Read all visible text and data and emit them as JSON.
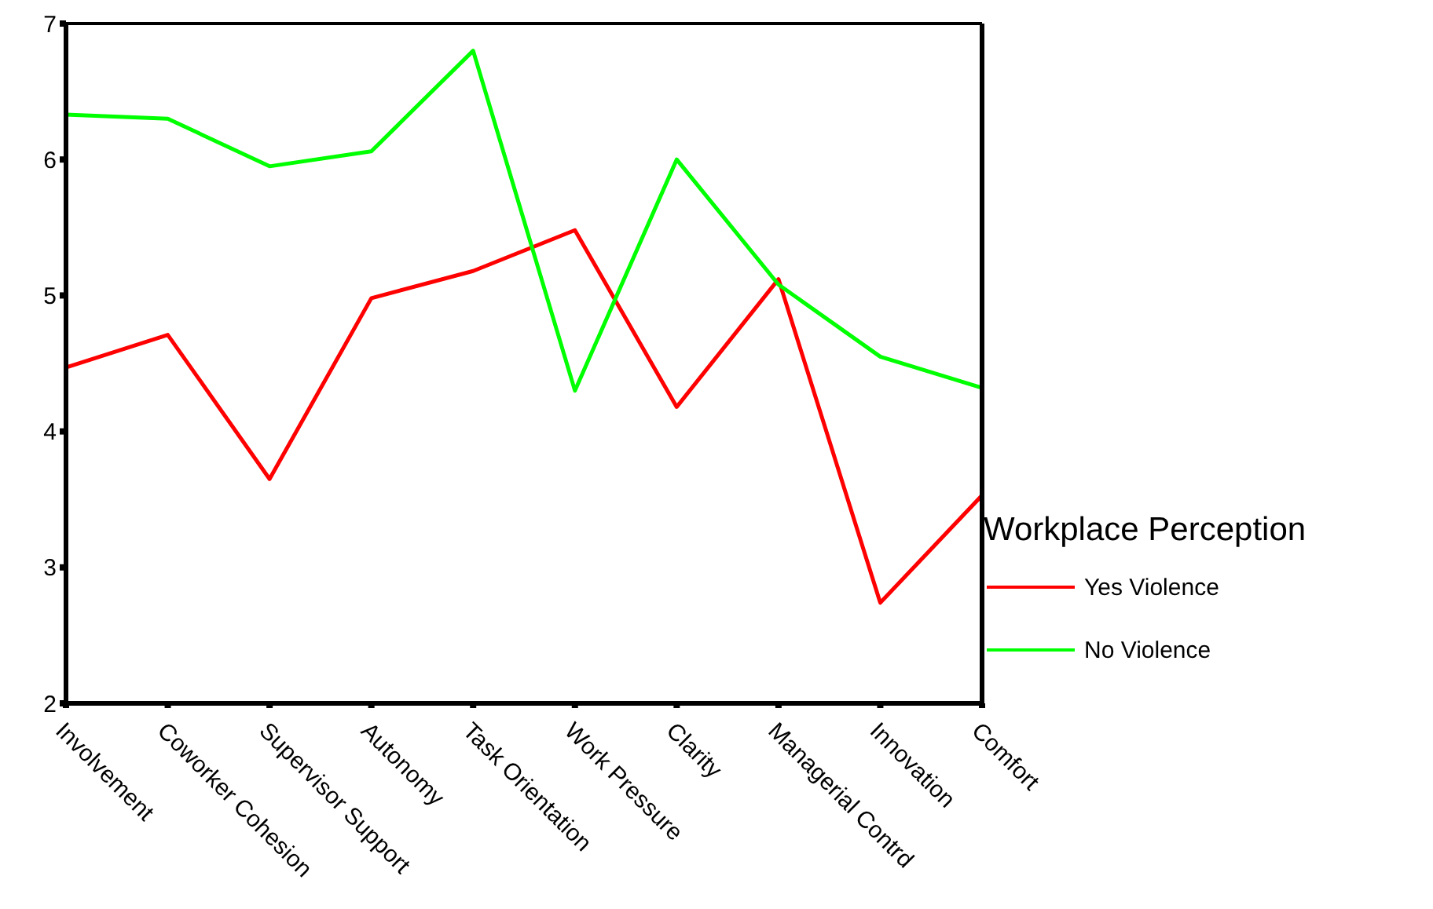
{
  "chart_data": {
    "type": "line",
    "categories": [
      "Involvement",
      "Coworker Cohesion",
      "Supervisor Support",
      "Autonomy",
      "Task Orientation",
      "Work Pressure",
      "Clarity",
      "Managerial Contrd",
      "Innovation",
      "Comfort"
    ],
    "series": [
      {
        "name": "Yes Violence",
        "color": "#ff0000",
        "values": [
          4.47,
          4.71,
          3.65,
          4.98,
          5.18,
          5.48,
          4.18,
          5.12,
          2.74,
          3.53
        ]
      },
      {
        "name": "No Violence",
        "color": "#00ff00",
        "values": [
          6.33,
          6.3,
          5.95,
          6.06,
          6.8,
          4.3,
          6.0,
          5.08,
          4.55,
          4.32
        ]
      }
    ],
    "ylim": [
      2,
      7
    ],
    "yticks": [
      2,
      3,
      4,
      5,
      6,
      7
    ],
    "legend": "right",
    "legend_title": "Workplace Perception",
    "grid": false,
    "marker": "none",
    "line_style": "solid"
  }
}
